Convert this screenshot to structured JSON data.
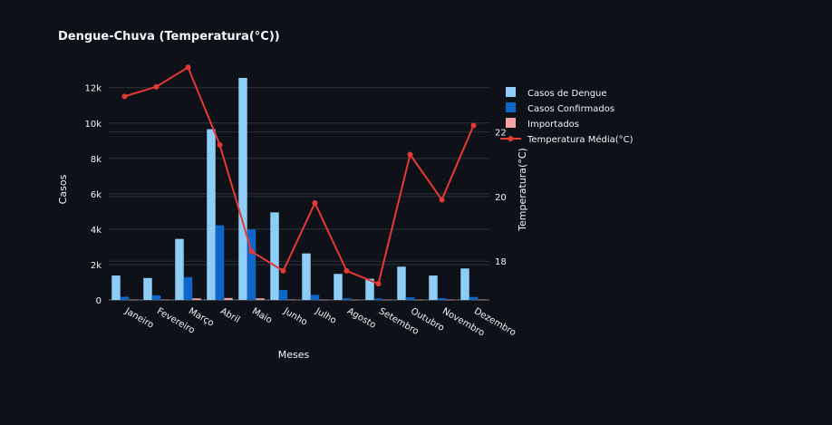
{
  "chart_data": {
    "type": "bar",
    "title": "Dengue-Chuva (Temperatura(°C))",
    "xlabel": "Meses",
    "ylabel": "Casos",
    "y2label": "Temperatura(°C)",
    "categories": [
      "Janeiro",
      "Fevereiro",
      "Março",
      "Abril",
      "Maio",
      "Junho",
      "Julho",
      "Agosto",
      "Setembro",
      "Outubro",
      "Novembro",
      "Dezembro"
    ],
    "ylim": [
      0,
      12600
    ],
    "y2lim": [
      16.8,
      23.7
    ],
    "yticks": [
      0,
      2000,
      4000,
      6000,
      8000,
      10000,
      12000
    ],
    "ytick_labels": [
      "0",
      "2k",
      "4k",
      "6k",
      "8k",
      "10k",
      "12k"
    ],
    "y2ticks": [
      18,
      20,
      22
    ],
    "y2tick_labels": [
      "18",
      "20",
      "22"
    ],
    "grid": true,
    "legend_position": "top-right",
    "series": [
      {
        "name": "Casos de Dengue",
        "type": "bar",
        "axis": "y",
        "color": "#8ecdf7",
        "values": [
          1380,
          1240,
          3450,
          9650,
          12550,
          4950,
          2630,
          1470,
          1200,
          1880,
          1380,
          1780
        ]
      },
      {
        "name": "Casos Confirmados",
        "type": "bar",
        "axis": "y",
        "color": "#0f66c9",
        "values": [
          180,
          260,
          1290,
          4220,
          3990,
          560,
          290,
          90,
          80,
          150,
          100,
          170
        ]
      },
      {
        "name": "Importados",
        "type": "bar",
        "axis": "y",
        "color": "#f5a2a2",
        "values": [
          15,
          20,
          90,
          110,
          90,
          25,
          10,
          10,
          10,
          15,
          15,
          20
        ]
      },
      {
        "name": "Temperatura Média(°C)",
        "type": "line",
        "axis": "y2",
        "color": "#e53935",
        "values": [
          23.1,
          23.4,
          24.0,
          21.6,
          18.3,
          17.7,
          19.8,
          17.7,
          17.3,
          21.3,
          19.9,
          22.2
        ]
      }
    ]
  }
}
